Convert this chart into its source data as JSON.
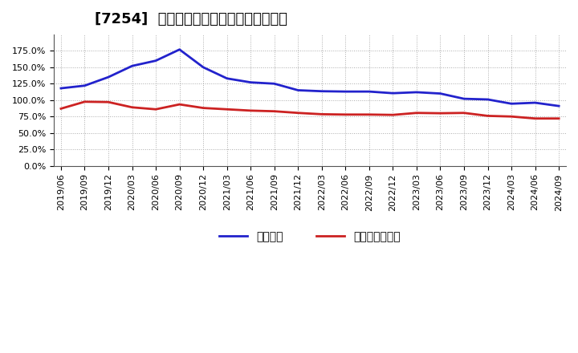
{
  "title": "[7254]  固定比率、固定長期適合率の推移",
  "x_labels": [
    "2019/06",
    "2019/09",
    "2019/12",
    "2020/03",
    "2020/06",
    "2020/09",
    "2020/12",
    "2021/03",
    "2021/06",
    "2021/09",
    "2021/12",
    "2022/03",
    "2022/06",
    "2022/09",
    "2022/12",
    "2023/03",
    "2023/06",
    "2023/09",
    "2023/12",
    "2024/03",
    "2024/06",
    "2024/09"
  ],
  "fixed_ratio": [
    118.0,
    122.0,
    135.0,
    152.0,
    160.0,
    177.0,
    150.0,
    133.0,
    127.0,
    125.0,
    115.0,
    113.5,
    113.0,
    113.0,
    110.5,
    112.0,
    110.0,
    102.0,
    101.0,
    94.5,
    96.0,
    91.0
  ],
  "fixed_longterm_ratio": [
    87.0,
    97.5,
    97.0,
    89.0,
    86.0,
    93.5,
    88.0,
    86.0,
    84.0,
    83.0,
    80.5,
    78.5,
    78.0,
    78.0,
    77.5,
    80.5,
    80.0,
    80.5,
    76.0,
    75.0,
    72.0,
    72.0
  ],
  "blue_color": "#2222cc",
  "red_color": "#cc2222",
  "background_color": "#ffffff",
  "grid_color": "#aaaaaa",
  "ylim": [
    0,
    200
  ],
  "yticks": [
    0,
    25,
    50,
    75,
    100,
    125,
    150,
    175
  ],
  "legend_label_blue": "固定比率",
  "legend_label_red": "固定長期適合率",
  "title_fontsize": 13,
  "tick_fontsize": 8,
  "line_width": 2.0
}
